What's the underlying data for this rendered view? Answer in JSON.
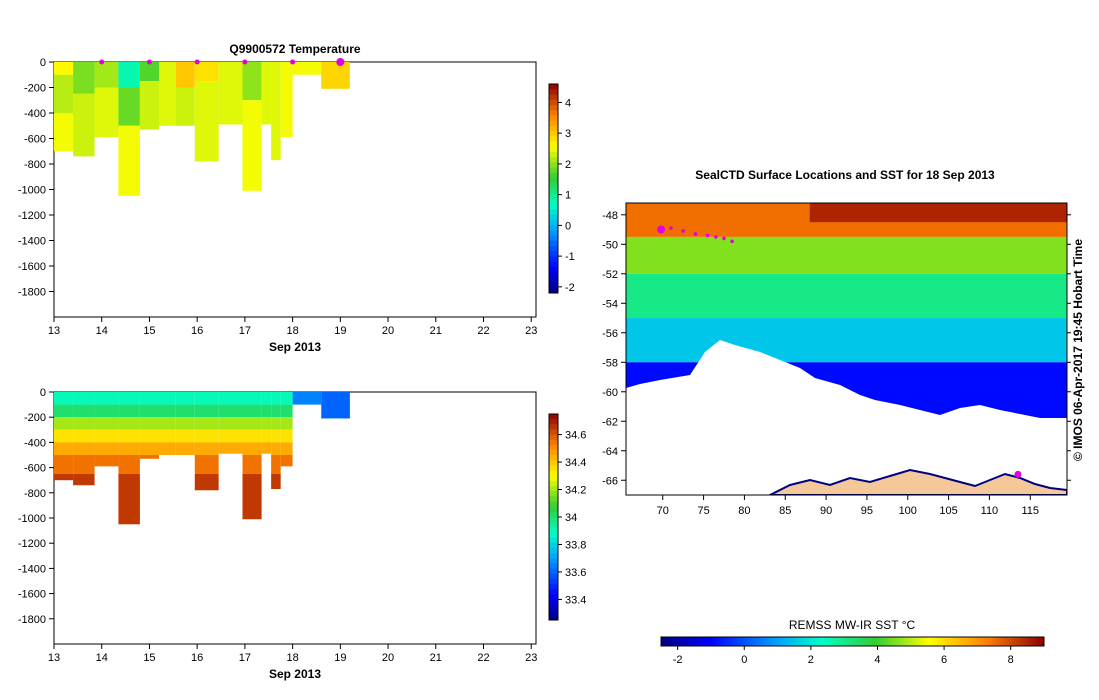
{
  "top_panel": {
    "title": "Q9900572  Temperature",
    "xlabel": "Sep 2013"
  },
  "bottom_panel": {
    "xlabel": "Sep 2013"
  },
  "map": {
    "title": "SealCTD Surface Locations and SST for 18 Sep 2013",
    "stamp": "© IMOS 06-Apr-2017 19:45 Hobart Time",
    "colorbar_label": "REMSS MW-IR SST °C"
  },
  "chart_data": [
    {
      "type": "heatmap",
      "title": "Q9900572  Temperature",
      "xlabel": "Sep 2013",
      "x_ticks": [
        13,
        14,
        15,
        16,
        17,
        18,
        19,
        20,
        21,
        22,
        23
      ],
      "y_ticks": [
        0,
        -200,
        -400,
        -600,
        -800,
        -1000,
        -1200,
        -1400,
        -1600,
        -1800
      ],
      "xlim": [
        13,
        23.1
      ],
      "ylim": [
        -2000,
        0
      ],
      "colorbar": {
        "range": [
          -2.2,
          4.6
        ],
        "ticks": [
          4,
          3,
          2,
          1,
          0,
          -1,
          -2
        ]
      },
      "profile_markers": [
        14,
        15,
        16,
        17,
        18,
        19
      ],
      "profiles": [
        {
          "x0": 13.0,
          "x1": 13.4,
          "depth": -700,
          "layers": [
            {
              "top": 0,
              "bottom": -100,
              "value": 2.6
            },
            {
              "top": -100,
              "bottom": -400,
              "value": 2.2
            },
            {
              "top": -400,
              "bottom": -700,
              "value": 2.5
            }
          ]
        },
        {
          "x0": 13.4,
          "x1": 13.85,
          "depth": -740,
          "layers": [
            {
              "top": 0,
              "bottom": -250,
              "value": 1.9
            },
            {
              "top": -250,
              "bottom": -740,
              "value": 2.3
            }
          ]
        },
        {
          "x0": 13.85,
          "x1": 14.35,
          "depth": -590,
          "layers": [
            {
              "top": 0,
              "bottom": -200,
              "value": 2.1
            },
            {
              "top": -200,
              "bottom": -590,
              "value": 2.4
            }
          ]
        },
        {
          "x0": 14.35,
          "x1": 14.8,
          "depth": -1050,
          "layers": [
            {
              "top": 0,
              "bottom": -200,
              "value": 0.8
            },
            {
              "top": -200,
              "bottom": -500,
              "value": 1.8
            },
            {
              "top": -500,
              "bottom": -1050,
              "value": 2.5
            }
          ]
        },
        {
          "x0": 14.8,
          "x1": 15.2,
          "depth": -530,
          "layers": [
            {
              "top": 0,
              "bottom": -150,
              "value": 1.7
            },
            {
              "top": -150,
              "bottom": -530,
              "value": 2.3
            }
          ]
        },
        {
          "x0": 15.2,
          "x1": 15.55,
          "depth": -500,
          "layers": [
            {
              "top": 0,
              "bottom": -500,
              "value": 2.4
            }
          ]
        },
        {
          "x0": 15.55,
          "x1": 15.95,
          "depth": -500,
          "layers": [
            {
              "top": 0,
              "bottom": -200,
              "value": 3.0
            },
            {
              "top": -200,
              "bottom": -500,
              "value": 2.3
            }
          ]
        },
        {
          "x0": 15.95,
          "x1": 16.45,
          "depth": -780,
          "layers": [
            {
              "top": 0,
              "bottom": -150,
              "value": 2.8
            },
            {
              "top": -150,
              "bottom": -780,
              "value": 2.4
            }
          ]
        },
        {
          "x0": 16.45,
          "x1": 16.95,
          "depth": -490,
          "layers": [
            {
              "top": 0,
              "bottom": -490,
              "value": 2.4
            }
          ]
        },
        {
          "x0": 16.95,
          "x1": 17.35,
          "depth": -1010,
          "layers": [
            {
              "top": 0,
              "bottom": -300,
              "value": 2.0
            },
            {
              "top": -300,
              "bottom": -1010,
              "value": 2.5
            }
          ]
        },
        {
          "x0": 17.35,
          "x1": 17.55,
          "depth": -490,
          "layers": [
            {
              "top": 0,
              "bottom": -490,
              "value": 2.4
            }
          ]
        },
        {
          "x0": 17.55,
          "x1": 17.75,
          "depth": -770,
          "layers": [
            {
              "top": 0,
              "bottom": -770,
              "value": 2.4
            }
          ]
        },
        {
          "x0": 17.75,
          "x1": 18.0,
          "depth": -590,
          "layers": [
            {
              "top": 0,
              "bottom": -590,
              "value": 2.5
            }
          ]
        },
        {
          "x0": 18.0,
          "x1": 18.6,
          "depth": -100,
          "layers": [
            {
              "top": 0,
              "bottom": -100,
              "value": 2.5
            }
          ]
        },
        {
          "x0": 18.6,
          "x1": 19.2,
          "depth": -210,
          "layers": [
            {
              "top": 0,
              "bottom": -210,
              "value": 2.9
            }
          ]
        }
      ]
    },
    {
      "type": "heatmap",
      "xlabel": "Sep 2013",
      "x_ticks": [
        13,
        14,
        15,
        16,
        17,
        18,
        19,
        20,
        21,
        22,
        23
      ],
      "y_ticks": [
        0,
        -200,
        -400,
        -600,
        -800,
        -1000,
        -1200,
        -1400,
        -1600,
        -1800
      ],
      "xlim": [
        13,
        23.1
      ],
      "ylim": [
        -2000,
        0
      ],
      "colorbar": {
        "range": [
          33.25,
          34.75
        ],
        "ticks": [
          34.6,
          34.4,
          34.2,
          34,
          33.8,
          33.6,
          33.4
        ]
      },
      "profiles": [
        {
          "x0": 13.0,
          "x1": 13.4,
          "depth": -700
        },
        {
          "x0": 13.4,
          "x1": 13.85,
          "depth": -740
        },
        {
          "x0": 13.85,
          "x1": 14.35,
          "depth": -590
        },
        {
          "x0": 14.35,
          "x1": 14.8,
          "depth": -1050
        },
        {
          "x0": 14.8,
          "x1": 15.2,
          "depth": -530
        },
        {
          "x0": 15.2,
          "x1": 15.55,
          "depth": -500
        },
        {
          "x0": 15.55,
          "x1": 15.95,
          "depth": -500
        },
        {
          "x0": 15.95,
          "x1": 16.45,
          "depth": -780
        },
        {
          "x0": 16.45,
          "x1": 16.95,
          "depth": -490
        },
        {
          "x0": 16.95,
          "x1": 17.35,
          "depth": -1010
        },
        {
          "x0": 17.35,
          "x1": 17.55,
          "depth": -490
        },
        {
          "x0": 17.55,
          "x1": 17.75,
          "depth": -770
        },
        {
          "x0": 17.75,
          "x1": 18.0,
          "depth": -590
        },
        {
          "x0": 18.0,
          "x1": 18.6,
          "depth": -100,
          "layers": [
            {
              "top": 0,
              "bottom": -100,
              "value": 33.65
            }
          ]
        },
        {
          "x0": 18.6,
          "x1": 19.2,
          "depth": -210,
          "layers": [
            {
              "top": 0,
              "bottom": -210,
              "value": 33.6
            }
          ]
        }
      ],
      "salinity_profile": [
        {
          "top": 0,
          "bottom": -100,
          "value": 33.9
        },
        {
          "top": -100,
          "bottom": -200,
          "value": 34.0
        },
        {
          "top": -200,
          "bottom": -300,
          "value": 34.2
        },
        {
          "top": -300,
          "bottom": -400,
          "value": 34.35
        },
        {
          "top": -400,
          "bottom": -500,
          "value": 34.45
        },
        {
          "top": -500,
          "bottom": -650,
          "value": 34.55
        },
        {
          "top": -650,
          "bottom": -1100,
          "value": 34.65
        }
      ]
    },
    {
      "type": "heatmap",
      "title": "SealCTD Surface Locations and SST for 18 Sep 2013",
      "x_ticks": [
        70,
        75,
        80,
        85,
        90,
        95,
        100,
        105,
        110,
        115
      ],
      "y_ticks": [
        -48,
        -50,
        -52,
        -54,
        -56,
        -58,
        -60,
        -62,
        -64,
        -66
      ],
      "xlim": [
        65.5,
        119.5
      ],
      "ylim": [
        -67,
        -47.2
      ],
      "colorbar": {
        "label": "REMSS MW-IR SST °C",
        "range": [
          -2.5,
          9
        ],
        "ticks": [
          -2,
          0,
          2,
          4,
          6,
          8
        ]
      },
      "fields": [
        {
          "lon0": 65.5,
          "lon1": 119.5,
          "lat0": -47.2,
          "lat1": -49.5,
          "value": 7.5
        },
        {
          "lon0": 88,
          "lon1": 119.5,
          "lat0": -47.2,
          "lat1": -48.5,
          "value": 8.5
        },
        {
          "lon0": 65.5,
          "lon1": 119.5,
          "lat0": -49.5,
          "lat1": -52,
          "value": 4.5
        },
        {
          "lon0": 65.5,
          "lon1": 119.5,
          "lat0": -52,
          "lat1": -55,
          "value": 3
        },
        {
          "lon0": 65.5,
          "lon1": 119.5,
          "lat0": -55,
          "lat1": -58,
          "value": 1.5
        },
        {
          "lon0": 65.5,
          "lon1": 119.5,
          "lat0": -58,
          "lat1": -62,
          "value": -1
        }
      ],
      "track": [
        [
          69.8,
          -49
        ],
        [
          71,
          -48.9
        ],
        [
          72.5,
          -49.1
        ],
        [
          74,
          -49.3
        ],
        [
          75.5,
          -49.4
        ],
        [
          76.5,
          -49.5
        ],
        [
          77.5,
          -49.6
        ],
        [
          78.5,
          -49.8
        ]
      ],
      "track_end": [
        113.5,
        -65.6
      ]
    }
  ]
}
